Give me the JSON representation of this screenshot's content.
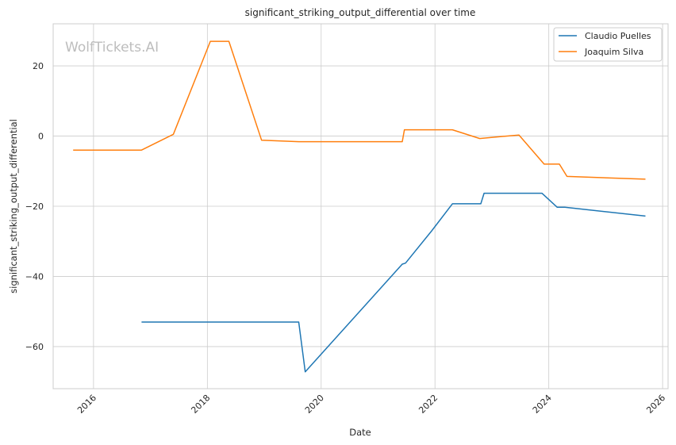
{
  "chart_data": {
    "type": "line",
    "title": "significant_striking_output_differential over time",
    "xlabel": "Date",
    "ylabel": "significant_striking_output_differential",
    "watermark": "WolfTickets.AI",
    "xlim": [
      "2015-04-17",
      "2026-02-05"
    ],
    "ylim": [
      -72,
      32
    ],
    "x_ticks": [
      "2016",
      "2018",
      "2020",
      "2022",
      "2024",
      "2026"
    ],
    "y_ticks": [
      -60,
      -40,
      -20,
      0,
      20
    ],
    "grid": true,
    "legend_position": "top-right",
    "series": [
      {
        "name": "Claudio Puelles",
        "color": "#1f77b4",
        "points": [
          [
            "2016-11-05",
            -53.0
          ],
          [
            "2019-08-10",
            -53.0
          ],
          [
            "2019-09-21",
            -67.2
          ],
          [
            "2021-06-05",
            -36.5
          ],
          [
            "2021-06-26",
            -36.2
          ],
          [
            "2021-12-11",
            -27.0
          ],
          [
            "2022-04-23",
            -19.3
          ],
          [
            "2022-10-22",
            -19.3
          ],
          [
            "2022-11-12",
            -16.3
          ],
          [
            "2023-11-18",
            -16.3
          ],
          [
            "2024-02-24",
            -20.3
          ],
          [
            "2024-04-13",
            -20.3
          ],
          [
            "2025-09-13",
            -22.8
          ]
        ]
      },
      {
        "name": "Joaquim Silva",
        "color": "#ff7f0e",
        "points": [
          [
            "2015-08-23",
            -4.0
          ],
          [
            "2016-11-05",
            -4.0
          ],
          [
            "2017-05-28",
            0.5
          ],
          [
            "2018-01-20",
            27.0
          ],
          [
            "2018-05-19",
            27.0
          ],
          [
            "2018-12-15",
            -1.2
          ],
          [
            "2019-08-10",
            -1.6
          ],
          [
            "2021-06-05",
            -1.6
          ],
          [
            "2021-06-19",
            1.8
          ],
          [
            "2022-04-23",
            1.8
          ],
          [
            "2022-10-15",
            -0.7
          ],
          [
            "2023-06-24",
            0.3
          ],
          [
            "2023-12-02",
            -8.0
          ],
          [
            "2024-03-09",
            -8.0
          ],
          [
            "2024-04-27",
            -11.5
          ],
          [
            "2025-09-13",
            -12.3
          ]
        ]
      }
    ]
  }
}
